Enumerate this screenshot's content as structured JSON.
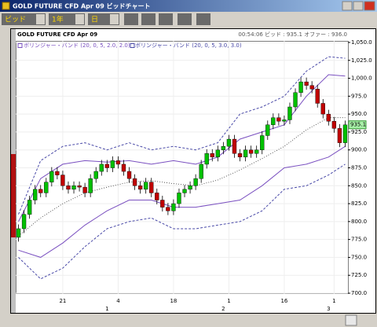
{
  "window": {
    "title": "GOLD FUTURE CFD Apr 09 ビッドチャート"
  },
  "toolbar": {
    "price_type": "ビッド",
    "period": "1年",
    "interval": "日"
  },
  "chart_data": {
    "type": "candlestick",
    "title": "GOLD FUTURE CFD Apr 09",
    "status": "00:54:06 ビッド : 935.1 オファー : 936.0",
    "last_price": 935.1,
    "last_price_color": "#a8f0a8",
    "up_color": "#00c000",
    "down_color": "#c00000",
    "grid": true,
    "categories": [
      null,
      null,
      null,
      null,
      null,
      null,
      null,
      null,
      "21",
      null,
      null,
      null,
      null,
      null,
      null,
      null,
      null,
      null,
      "4",
      null,
      null,
      null,
      null,
      null,
      null,
      null,
      null,
      null,
      "18",
      null,
      null,
      null,
      null,
      null,
      null,
      null,
      null,
      null,
      "1",
      null,
      null,
      null,
      null,
      null,
      null,
      null,
      null,
      null,
      "16",
      null,
      null,
      null,
      null,
      null,
      null,
      null,
      null,
      "1",
      null,
      null
    ],
    "months": [
      null,
      null,
      null,
      null,
      null,
      null,
      null,
      null,
      null,
      null,
      null,
      null,
      null,
      null,
      null,
      null,
      "1",
      null,
      null,
      null,
      null,
      null,
      null,
      null,
      null,
      null,
      null,
      null,
      null,
      null,
      null,
      null,
      null,
      null,
      null,
      null,
      null,
      "2",
      null,
      null,
      null,
      null,
      null,
      null,
      null,
      null,
      null,
      null,
      null,
      null,
      null,
      null,
      null,
      null,
      null,
      null,
      "3",
      null,
      null,
      null
    ],
    "open": [
      778,
      790,
      810,
      830,
      845,
      840,
      855,
      870,
      865,
      850,
      845,
      850,
      848,
      840,
      860,
      870,
      880,
      875,
      885,
      880,
      870,
      860,
      850,
      845,
      855,
      840,
      830,
      820,
      815,
      825,
      840,
      845,
      850,
      860,
      880,
      895,
      890,
      900,
      905,
      915,
      895,
      890,
      900,
      895,
      900,
      920,
      935,
      945,
      940,
      942,
      960,
      980,
      995,
      990,
      985,
      965,
      950,
      940,
      930,
      910
    ],
    "high": [
      796,
      816,
      836,
      851,
      851,
      861,
      876,
      876,
      871,
      856,
      856,
      856,
      854,
      866,
      876,
      886,
      886,
      891,
      891,
      886,
      876,
      866,
      856,
      861,
      861,
      846,
      836,
      826,
      831,
      846,
      851,
      856,
      866,
      886,
      901,
      901,
      906,
      911,
      921,
      921,
      901,
      906,
      906,
      906,
      926,
      941,
      951,
      951,
      948,
      966,
      986,
      1001,
      1001,
      996,
      991,
      971,
      956,
      946,
      936,
      941
    ],
    "low": [
      772,
      784,
      804,
      824,
      834,
      834,
      849,
      859,
      844,
      839,
      839,
      842,
      834,
      834,
      854,
      864,
      869,
      869,
      874,
      864,
      854,
      844,
      839,
      839,
      834,
      824,
      814,
      809,
      809,
      819,
      834,
      839,
      844,
      854,
      874,
      884,
      884,
      894,
      899,
      889,
      884,
      884,
      889,
      889,
      894,
      914,
      929,
      934,
      934,
      936,
      954,
      974,
      984,
      979,
      959,
      944,
      934,
      924,
      904,
      904
    ],
    "close": [
      790,
      810,
      830,
      845,
      840,
      855,
      870,
      865,
      850,
      845,
      850,
      848,
      840,
      860,
      870,
      880,
      875,
      885,
      880,
      870,
      860,
      850,
      845,
      855,
      840,
      830,
      820,
      815,
      825,
      840,
      845,
      850,
      860,
      880,
      895,
      890,
      900,
      905,
      915,
      895,
      890,
      900,
      895,
      900,
      920,
      935,
      945,
      940,
      942,
      960,
      980,
      995,
      990,
      985,
      965,
      950,
      940,
      930,
      910,
      935
    ],
    "indicators": [
      {
        "name": "ボリンジャー・バンド (20, 0, 5, 2.0, 2.0)",
        "color": "#7a50c0",
        "line_style": "solid",
        "x": [
          0,
          4,
          8,
          12,
          16,
          20,
          24,
          28,
          32,
          36,
          40,
          44,
          48,
          52,
          56,
          59
        ],
        "upper": [
          800,
          860,
          880,
          885,
          883,
          885,
          880,
          885,
          880,
          890,
          915,
          925,
          935,
          975,
          1005,
          1003
        ],
        "middle": [
          780,
          805,
          825,
          840,
          848,
          855,
          857,
          853,
          850,
          858,
          872,
          888,
          905,
          928,
          945,
          945
        ],
        "lower": [
          760,
          750,
          770,
          795,
          815,
          830,
          830,
          820,
          820,
          825,
          830,
          850,
          875,
          880,
          890,
          905
        ]
      },
      {
        "name": "ボリンジャー・バンド (20, 0, 5, 3.0, 3.0)",
        "color": "#4a4aa8",
        "line_style": "dashed",
        "x": [
          0,
          4,
          8,
          12,
          16,
          20,
          24,
          28,
          32,
          36,
          40,
          44,
          48,
          52,
          56,
          59
        ],
        "upper": [
          810,
          885,
          905,
          910,
          900,
          910,
          900,
          905,
          900,
          910,
          950,
          960,
          975,
          1010,
          1030,
          1028
        ],
        "lower": [
          750,
          720,
          735,
          765,
          790,
          800,
          805,
          790,
          790,
          795,
          800,
          815,
          845,
          850,
          865,
          880
        ]
      }
    ],
    "ylim": [
      700,
      1050
    ],
    "yticks": [
      {
        "value": 700,
        "label": "700.0"
      },
      {
        "value": 725,
        "label": "725.0"
      },
      {
        "value": 750,
        "label": "750.0"
      },
      {
        "value": 775,
        "label": "775.0"
      },
      {
        "value": 800,
        "label": "800.0"
      },
      {
        "value": 825,
        "label": "825.0"
      },
      {
        "value": 850,
        "label": "850.0"
      },
      {
        "value": 875,
        "label": "875.0"
      },
      {
        "value": 900,
        "label": "900.0"
      },
      {
        "value": 925,
        "label": "925.0"
      },
      {
        "value": 950,
        "label": "950.0"
      },
      {
        "value": 975,
        "label": "975.0"
      },
      {
        "value": 1000,
        "label": "1,000.0"
      },
      {
        "value": 1025,
        "label": "1,025.0"
      },
      {
        "value": 1050,
        "label": "1,050.0"
      }
    ]
  }
}
